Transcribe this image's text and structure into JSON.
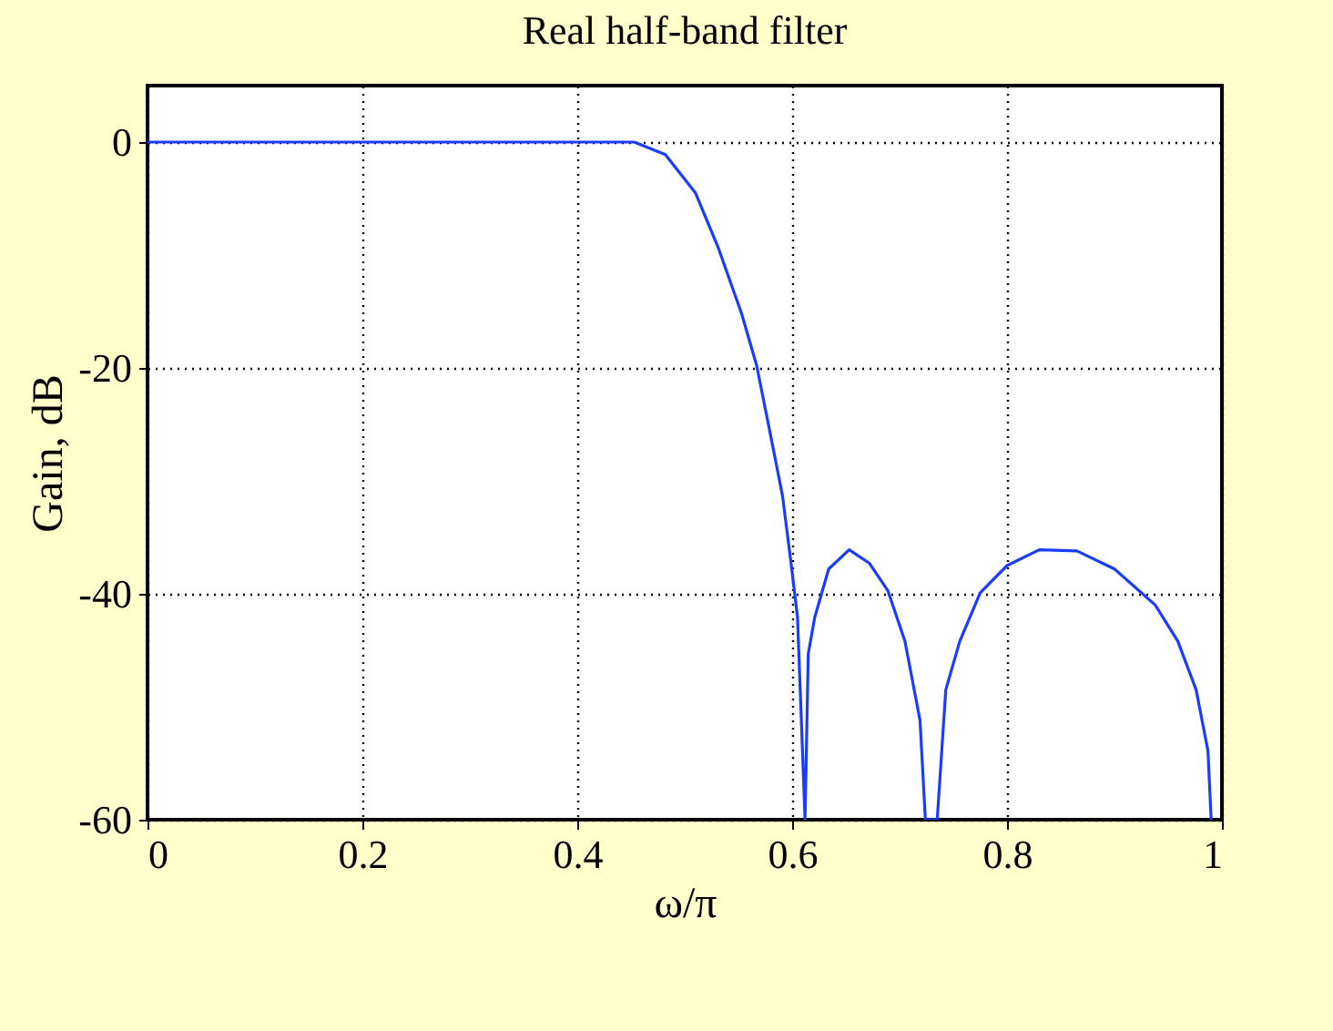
{
  "chart_data": {
    "type": "line",
    "title": "Real half-band filter",
    "xlabel": "ω/π",
    "ylabel": "Gain, dB",
    "x": [
      0,
      0.3,
      0.453,
      0.482,
      0.51,
      0.531,
      0.553,
      0.567,
      0.58,
      0.591,
      0.599,
      0.605,
      0.612,
      0.615,
      0.621,
      0.634,
      0.653,
      0.672,
      0.689,
      0.705,
      0.719,
      0.724,
      0.735,
      0.743,
      0.756,
      0.775,
      0.8,
      0.83,
      0.865,
      0.9,
      0.938,
      0.959,
      0.976,
      0.987,
      0.99
    ],
    "series": [
      {
        "color": "#1a3cff",
        "values": [
          0,
          0,
          0,
          -1.1,
          -4.5,
          -9.3,
          -15.2,
          -19.8,
          -26,
          -31.3,
          -37.3,
          -42.1,
          -60,
          -45.3,
          -42.1,
          -37.8,
          -36.1,
          -37.3,
          -39.7,
          -44.2,
          -51.2,
          -60,
          -60,
          -48.5,
          -44.2,
          -39.9,
          -37.5,
          -36.1,
          -36.2,
          -37.8,
          -41,
          -44.2,
          -48.5,
          -53.9,
          -60
        ]
      }
    ],
    "xlim": [
      0,
      1
    ],
    "ylim": [
      -60,
      5
    ],
    "xticks": [
      0,
      0.2,
      0.4,
      0.6,
      0.8,
      1
    ],
    "yticks": [
      -60,
      -40,
      -20,
      0
    ],
    "grid": true,
    "line_style": "solid",
    "marker": "none"
  }
}
